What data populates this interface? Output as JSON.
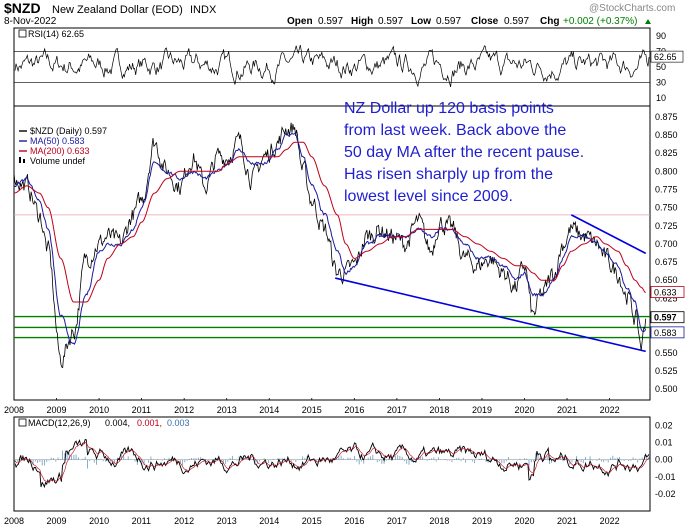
{
  "header": {
    "symbol": "$NZD",
    "name": "New Zealand Dollar (EOD)",
    "exchange": "INDX",
    "date": "8-Nov-2022",
    "open_label": "Open",
    "open": "0.597",
    "high_label": "High",
    "high": "0.597",
    "low_label": "Low",
    "low": "0.597",
    "close_label": "Close",
    "close": "0.597",
    "chg_label": "Chg",
    "chg": "+0.002 (+0.37%)",
    "watermark": "@StockCharts.com"
  },
  "annotation": {
    "lines": [
      "NZ Dollar up 120 basis points",
      "from last week. Back above the",
      "50 day MA after the recent pause.",
      "Has risen sharply up from the",
      "lowest level since 2009."
    ]
  },
  "colors": {
    "price": "#000000",
    "ma50": "#1a1aa0",
    "ma200": "#c0001a",
    "support": "#008000",
    "trend": "#0000e0",
    "annotation": "#1f1fd0",
    "up_marker": "#008000"
  },
  "chart_data": [
    {
      "type": "line",
      "panel": "rsi",
      "legend": "RSI(14) 62.65",
      "value": 62.65,
      "ylim": [
        0,
        100
      ],
      "yticks": [
        10,
        30,
        50,
        70,
        90
      ],
      "reference_lines": [
        30,
        70
      ],
      "current_label": "62.65"
    },
    {
      "type": "line",
      "panel": "price",
      "legend_items": [
        "$NZD (Daily) 0.597",
        "MA(50) 0.583",
        "MA(200) 0.633",
        "Volume undef"
      ],
      "ylim": [
        0.485,
        0.89
      ],
      "yticks": [
        "0.875",
        "0.850",
        "0.825",
        "0.800",
        "0.775",
        "0.750",
        "0.725",
        "0.700",
        "0.675",
        "0.650",
        "0.625",
        "0.600",
        "0.575",
        "0.550",
        "0.525",
        "0.500"
      ],
      "x": [
        2008.0,
        2008.3,
        2008.6,
        2008.8,
        2009.1,
        2009.4,
        2009.7,
        2010.0,
        2010.2,
        2010.5,
        2010.8,
        2011.0,
        2011.3,
        2011.6,
        2011.9,
        2012.2,
        2012.5,
        2012.8,
        2013.0,
        2013.3,
        2013.6,
        2013.9,
        2014.2,
        2014.4,
        2014.6,
        2014.8,
        2015.0,
        2015.3,
        2015.6,
        2015.8,
        2016.0,
        2016.3,
        2016.6,
        2016.9,
        2017.2,
        2017.5,
        2017.8,
        2018.0,
        2018.3,
        2018.6,
        2018.9,
        2019.2,
        2019.5,
        2019.8,
        2020.0,
        2020.2,
        2020.4,
        2020.7,
        2020.9,
        2021.1,
        2021.4,
        2021.7,
        2021.9,
        2022.2,
        2022.4,
        2022.6,
        2022.75,
        2022.85
      ],
      "series": [
        {
          "name": "$NZD (Daily)",
          "values": [
            0.79,
            0.78,
            0.74,
            0.69,
            0.54,
            0.58,
            0.68,
            0.7,
            0.71,
            0.7,
            0.74,
            0.76,
            0.84,
            0.8,
            0.78,
            0.82,
            0.78,
            0.82,
            0.82,
            0.84,
            0.79,
            0.82,
            0.84,
            0.86,
            0.86,
            0.8,
            0.76,
            0.72,
            0.66,
            0.66,
            0.67,
            0.71,
            0.72,
            0.71,
            0.7,
            0.73,
            0.69,
            0.73,
            0.72,
            0.68,
            0.67,
            0.68,
            0.66,
            0.64,
            0.67,
            0.6,
            0.63,
            0.66,
            0.7,
            0.72,
            0.71,
            0.7,
            0.68,
            0.66,
            0.63,
            0.6,
            0.56,
            0.597
          ]
        },
        {
          "name": "MA(50)",
          "values": [
            0.78,
            0.79,
            0.76,
            0.72,
            0.6,
            0.56,
            0.63,
            0.69,
            0.7,
            0.7,
            0.72,
            0.75,
            0.81,
            0.8,
            0.79,
            0.8,
            0.79,
            0.8,
            0.81,
            0.83,
            0.81,
            0.81,
            0.83,
            0.85,
            0.85,
            0.82,
            0.78,
            0.74,
            0.69,
            0.66,
            0.67,
            0.7,
            0.71,
            0.71,
            0.71,
            0.72,
            0.71,
            0.72,
            0.72,
            0.7,
            0.68,
            0.68,
            0.67,
            0.65,
            0.66,
            0.63,
            0.63,
            0.65,
            0.68,
            0.71,
            0.71,
            0.7,
            0.69,
            0.67,
            0.64,
            0.62,
            0.58,
            0.583
          ]
        },
        {
          "name": "MA(200)",
          "values": [
            0.77,
            0.78,
            0.77,
            0.75,
            0.68,
            0.62,
            0.62,
            0.65,
            0.68,
            0.7,
            0.71,
            0.73,
            0.77,
            0.79,
            0.8,
            0.8,
            0.8,
            0.8,
            0.81,
            0.82,
            0.82,
            0.82,
            0.82,
            0.83,
            0.84,
            0.84,
            0.82,
            0.78,
            0.74,
            0.7,
            0.68,
            0.69,
            0.7,
            0.71,
            0.71,
            0.72,
            0.72,
            0.72,
            0.72,
            0.71,
            0.7,
            0.69,
            0.68,
            0.67,
            0.67,
            0.66,
            0.65,
            0.65,
            0.67,
            0.69,
            0.7,
            0.71,
            0.7,
            0.69,
            0.67,
            0.65,
            0.64,
            0.633
          ]
        }
      ],
      "current_labels": [
        {
          "series": "MA(200)",
          "value": "0.633"
        },
        {
          "series": "$NZD (Daily)",
          "value": "0.597"
        },
        {
          "series": "MA(50)",
          "value": "0.583"
        }
      ],
      "horizontal_lines": [
        0.6,
        0.585,
        0.571,
        0.74
      ],
      "trend_lines": [
        {
          "from": [
            2015.55,
            0.653
          ],
          "to": [
            2022.85,
            0.552
          ]
        },
        {
          "from": [
            2021.1,
            0.74
          ],
          "to": [
            2022.85,
            0.687
          ]
        }
      ],
      "x_ticks": [
        "2008",
        "2009",
        "2010",
        "2011",
        "2012",
        "2013",
        "2014",
        "2015",
        "2016",
        "2017",
        "2018",
        "2019",
        "2020",
        "2021",
        "2022"
      ]
    },
    {
      "type": "line",
      "panel": "macd",
      "legend_prefix": "MACD(12,26,9)",
      "legend_values": [
        "0.004,",
        "0.001,",
        "0.003"
      ],
      "ylim": [
        -0.03,
        0.025
      ],
      "yticks": [
        "0.02",
        "0.01",
        "0.00",
        "-0.01",
        "-0.02"
      ],
      "x_ticks": [
        "2008",
        "2009",
        "2010",
        "2011",
        "2012",
        "2013",
        "2014",
        "2015",
        "2016",
        "2017",
        "2018",
        "2019",
        "2020",
        "2021",
        "2022"
      ]
    }
  ]
}
